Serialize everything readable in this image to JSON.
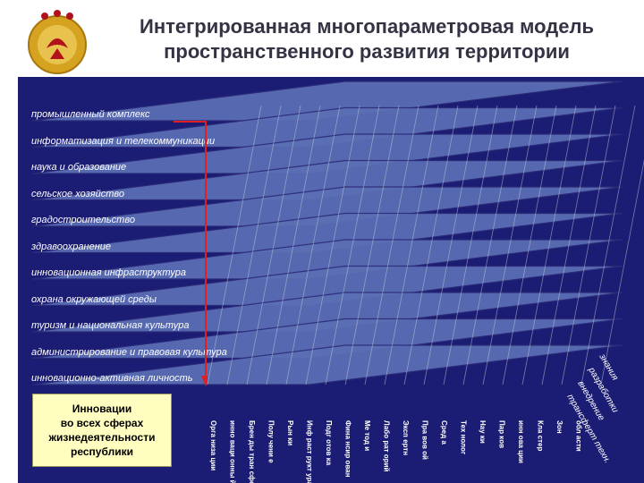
{
  "header": {
    "title_line1": "Интегрированная многопараметровая модель",
    "title_line2": "пространственного развития территории"
  },
  "layers": [
    "промышленный комплекс",
    "информатизация и телекоммуникации",
    "наука и образование",
    "сельское хозяйство",
    "градостроительство",
    "здравоохранение",
    "инновационная инфраструктура",
    "охрана окружающей среды",
    "туризм и национальная культура",
    "администрирование и правовая культура",
    "инновационно-активная личность"
  ],
  "legend": {
    "line1": "Инновации",
    "line2": "во всех сферах",
    "line3": "жизнедеятельности",
    "line4": "республики"
  },
  "columns": [
    "Орга низа ции",
    "инно ваци онны й",
    "Брен ды тран сфер",
    "Полу чени е",
    "Рын ки",
    "Инф раст рукт ура",
    "Подг отов ка",
    "Фина нсир ован",
    "Ме тод и",
    "Лабо рат орий",
    "Эксп ертн",
    "Пра вов ой",
    "Сред а",
    "Тех нолог",
    "Нау ки",
    "Пар ков",
    "инн ова ции",
    "Кла стер",
    "Зон",
    "обл асти"
  ],
  "diagonal_labels": [
    "знания",
    "разработки",
    "внедрение",
    "трансферт техн."
  ],
  "colors": {
    "panel": "#1b1c73",
    "layer_fill": "#5b6fb5",
    "layer_stroke": "#2c2c7a",
    "column_line": "#c8ccd8",
    "legend_fill": "#fffec0",
    "arrow": "#e02020",
    "title": "#333344"
  }
}
